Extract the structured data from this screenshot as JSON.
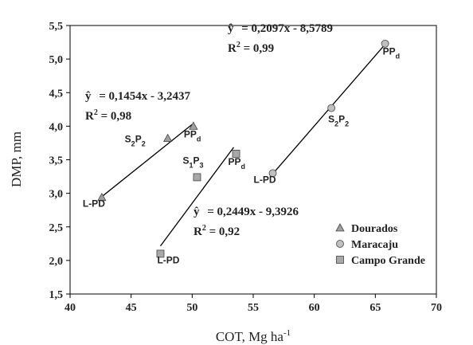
{
  "chart_data": {
    "type": "scatter",
    "xlabel_base": "COT, Mg ha",
    "xlabel_sup": "-1",
    "ylabel": "DMP, mm",
    "xlim": [
      40,
      70
    ],
    "ylim": [
      1.5,
      5.5
    ],
    "x_ticks": [
      "40",
      "45",
      "50",
      "55",
      "60",
      "65",
      "70"
    ],
    "y_ticks": [
      "1,5",
      "2,0",
      "2,5",
      "3,0",
      "3,5",
      "4,0",
      "4,5",
      "5,0",
      "5,5"
    ],
    "grid": false,
    "legend_position": "bottom-right",
    "series": [
      {
        "name": "Dourados",
        "marker": "triangle",
        "color": "#a0a0a0",
        "points": [
          {
            "x": 42.6,
            "y": 2.94,
            "label_main": "L-PD",
            "label_sub": ""
          },
          {
            "x": 48.0,
            "y": 3.82,
            "label_main": "S2P2",
            "label_sub": ""
          },
          {
            "x": 50.1,
            "y": 4.0,
            "label_main": "PP",
            "label_sub": "d"
          }
        ],
        "equation": "ŷ = 0,1454x - 3,2437",
        "r2": "R2 = 0,98",
        "trend": {
          "x1": 42.5,
          "x2": 50.0,
          "slope": 0.1454,
          "intercept": -3.2437
        }
      },
      {
        "name": "Maracaju",
        "marker": "circle",
        "color": "#c0c0c0",
        "points": [
          {
            "x": 56.6,
            "y": 3.3,
            "label_main": "L-PD",
            "label_sub": ""
          },
          {
            "x": 61.4,
            "y": 4.27,
            "label_main": "S2P2",
            "label_sub": ""
          },
          {
            "x": 65.8,
            "y": 5.23,
            "label_main": "PP",
            "label_sub": "d"
          }
        ],
        "equation": "ŷ = 0,2097x - 8,5789",
        "r2": "R2 = 0,99",
        "trend": {
          "x1": 56.5,
          "x2": 65.8,
          "slope": 0.2097,
          "intercept": -8.5789
        }
      },
      {
        "name": "Campo Grande",
        "marker": "square",
        "color": "#a8a8a8",
        "points": [
          {
            "x": 47.4,
            "y": 2.1,
            "label_main": "L-PD",
            "label_sub": ""
          },
          {
            "x": 50.4,
            "y": 3.24,
            "label_main": "S1P3",
            "label_sub": ""
          },
          {
            "x": 53.6,
            "y": 3.59,
            "label_main": "PP",
            "label_sub": "d"
          }
        ],
        "equation": "ŷ = 0,2449x - 9,3926",
        "r2": "R2 = 0,92",
        "trend": {
          "x1": 47.4,
          "x2": 53.4,
          "slope": 0.2449,
          "intercept": -9.3926
        }
      }
    ]
  }
}
